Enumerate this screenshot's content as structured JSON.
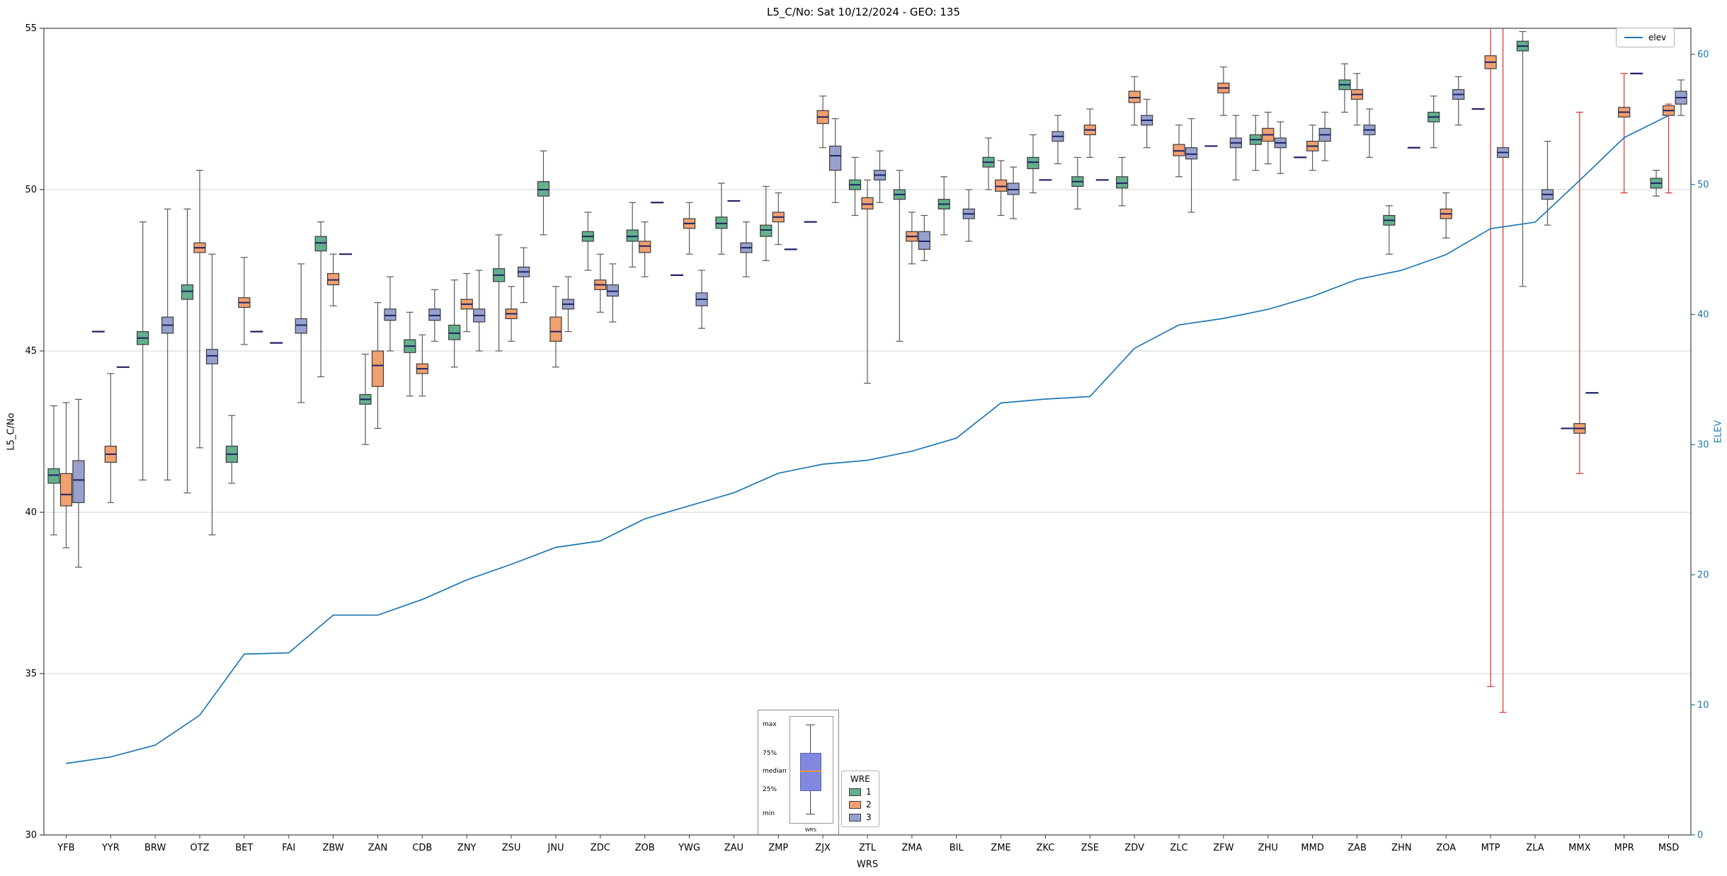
{
  "chart_data": {
    "type": "boxplot+line",
    "title": "L5_C/No: Sat 10/12/2024 - GEO: 135",
    "xlabel": "WRS",
    "ylabel_left": "L5_C/No",
    "ylabel_right": "ELEV",
    "ylim_left": [
      30,
      55
    ],
    "yticks_left": [
      30,
      35,
      40,
      45,
      50,
      55
    ],
    "ylim_right": [
      0,
      62
    ],
    "yticks_right": [
      0,
      10,
      20,
      30,
      40,
      50,
      60
    ],
    "grid": "horizontal-major",
    "legend": {
      "title": "WRE",
      "entries": [
        {
          "label": "1"
        },
        {
          "label": "2"
        },
        {
          "label": "3"
        }
      ]
    },
    "line_label": "elev",
    "series_labels": [
      "1",
      "2",
      "3"
    ],
    "colors": {
      "series": [
        "#63b08c",
        "#f1a06f",
        "#97a1cd"
      ],
      "box_edge": "#3b3b3b",
      "median": "#1d2266",
      "whisker": "#5a5a5a",
      "red": "#d93030",
      "line": "#1f77b4",
      "grid": "#d4d4d4",
      "spine": "#3f3f3f",
      "tick_right": "#1f77b4",
      "inset_box": "#8188df",
      "inset_box_edge": "#5c63b8",
      "inset_median": "#e8953c"
    },
    "box_format": "[min, q1, median, q3, max, red-whisker-flag?] ; single value = median-only dash",
    "points": [
      {
        "wrs": "YFB",
        "elev": 5.5,
        "s1": [
          39.3,
          40.9,
          41.15,
          41.35,
          43.3
        ],
        "s2": [
          38.9,
          40.2,
          40.55,
          41.2,
          43.4
        ],
        "s3": [
          38.3,
          40.3,
          41.0,
          41.6,
          43.5
        ]
      },
      {
        "wrs": "YYR",
        "elev": 6.0,
        "s1": [
          45.6
        ],
        "s2": [
          40.3,
          41.55,
          41.8,
          42.05,
          44.3
        ],
        "s3": [
          44.5
        ]
      },
      {
        "wrs": "BRW",
        "elev": 6.9,
        "s1": [
          41.0,
          45.2,
          45.4,
          45.6,
          49.0
        ],
        "s2": null,
        "s3": [
          41.0,
          45.55,
          45.8,
          46.05,
          49.4
        ]
      },
      {
        "wrs": "OTZ",
        "elev": 9.2,
        "s1": [
          40.6,
          46.6,
          46.85,
          47.05,
          49.4
        ],
        "s2": [
          42.0,
          48.05,
          48.2,
          48.35,
          50.6
        ],
        "s3": [
          39.3,
          44.6,
          44.85,
          45.05,
          48.0
        ]
      },
      {
        "wrs": "BET",
        "elev": 13.9,
        "s1": [
          40.9,
          41.55,
          41.8,
          42.05,
          43.0
        ],
        "s2": [
          45.2,
          46.35,
          46.5,
          46.65,
          47.9
        ],
        "s3": [
          45.6
        ]
      },
      {
        "wrs": "FAI",
        "elev": 14.0,
        "s1": [
          45.25
        ],
        "s2": null,
        "s3": [
          43.4,
          45.55,
          45.8,
          46.0,
          47.7
        ]
      },
      {
        "wrs": "ZBW",
        "elev": 16.9,
        "s1": [
          44.2,
          48.1,
          48.35,
          48.55,
          49.0
        ],
        "s2": [
          46.4,
          47.05,
          47.2,
          47.4,
          48.0
        ],
        "s3": [
          48.0
        ]
      },
      {
        "wrs": "ZAN",
        "elev": 16.9,
        "s1": [
          42.1,
          43.35,
          43.5,
          43.65,
          44.9
        ],
        "s2": [
          42.6,
          43.9,
          44.55,
          45.0,
          46.5
        ],
        "s3": [
          45.0,
          45.95,
          46.1,
          46.3,
          47.3
        ]
      },
      {
        "wrs": "CDB",
        "elev": 18.1,
        "s1": [
          43.6,
          44.95,
          45.15,
          45.35,
          46.2
        ],
        "s2": [
          43.6,
          44.3,
          44.45,
          44.6,
          45.5
        ],
        "s3": [
          45.3,
          45.95,
          46.1,
          46.3,
          46.9
        ]
      },
      {
        "wrs": "ZNY",
        "elev": 19.6,
        "s1": [
          44.5,
          45.35,
          45.55,
          45.8,
          47.2
        ],
        "s2": [
          45.6,
          46.3,
          46.45,
          46.6,
          47.4
        ],
        "s3": [
          45.0,
          45.9,
          46.1,
          46.3,
          47.5
        ]
      },
      {
        "wrs": "ZSU",
        "elev": 20.8,
        "s1": [
          45.0,
          47.15,
          47.35,
          47.55,
          48.6
        ],
        "s2": [
          45.3,
          46.0,
          46.15,
          46.3,
          47.0
        ],
        "s3": [
          46.5,
          47.3,
          47.45,
          47.6,
          48.2
        ]
      },
      {
        "wrs": "JNU",
        "elev": 22.1,
        "s1": [
          48.6,
          49.8,
          50.0,
          50.25,
          51.2
        ],
        "s2": [
          44.5,
          45.3,
          45.6,
          46.05,
          47.0
        ],
        "s3": [
          45.6,
          46.3,
          46.45,
          46.6,
          47.3
        ]
      },
      {
        "wrs": "ZDC",
        "elev": 22.6,
        "s1": [
          47.5,
          48.4,
          48.55,
          48.7,
          49.3
        ],
        "s2": [
          46.2,
          46.9,
          47.05,
          47.2,
          48.0
        ],
        "s3": [
          45.9,
          46.7,
          46.85,
          47.05,
          47.7
        ]
      },
      {
        "wrs": "ZOB",
        "elev": 24.3,
        "s1": [
          47.6,
          48.4,
          48.55,
          48.75,
          49.6
        ],
        "s2": [
          47.3,
          48.05,
          48.25,
          48.4,
          49.0
        ],
        "s3": [
          49.6
        ]
      },
      {
        "wrs": "YWG",
        "elev": 25.3,
        "s1": [
          47.35
        ],
        "s2": [
          48.0,
          48.8,
          48.95,
          49.1,
          49.6
        ],
        "s3": [
          45.7,
          46.4,
          46.6,
          46.8,
          47.5
        ]
      },
      {
        "wrs": "ZAU",
        "elev": 26.3,
        "s1": [
          48.0,
          48.8,
          48.95,
          49.15,
          50.2
        ],
        "s2": [
          49.65
        ],
        "s3": [
          47.3,
          48.05,
          48.2,
          48.35,
          49.0
        ]
      },
      {
        "wrs": "ZMP",
        "elev": 27.8,
        "s1": [
          47.8,
          48.55,
          48.75,
          48.9,
          50.1
        ],
        "s2": [
          48.3,
          49.0,
          49.15,
          49.3,
          49.9
        ],
        "s3": [
          48.15
        ]
      },
      {
        "wrs": "ZJX",
        "elev": 28.5,
        "s1": [
          49.0
        ],
        "s2": [
          51.3,
          52.05,
          52.25,
          52.45,
          52.9
        ],
        "s3": [
          49.6,
          50.6,
          51.05,
          51.35,
          52.2
        ]
      },
      {
        "wrs": "ZTL",
        "elev": 28.8,
        "s1": [
          49.2,
          50.0,
          50.15,
          50.3,
          51.0
        ],
        "s2": [
          44.0,
          49.4,
          49.55,
          49.75,
          50.3
        ],
        "s3": [
          49.6,
          50.3,
          50.45,
          50.6,
          51.2
        ]
      },
      {
        "wrs": "ZMA",
        "elev": 29.5,
        "s1": [
          45.3,
          49.7,
          49.85,
          50.0,
          50.6
        ],
        "s2": [
          47.7,
          48.4,
          48.55,
          48.7,
          49.3
        ],
        "s3": [
          47.8,
          48.15,
          48.4,
          48.7,
          49.2
        ]
      },
      {
        "wrs": "BIL",
        "elev": 30.5,
        "s1": [
          48.6,
          49.4,
          49.55,
          49.7,
          50.4
        ],
        "s2": null,
        "s3": [
          48.4,
          49.1,
          49.25,
          49.4,
          50.0
        ]
      },
      {
        "wrs": "ZME",
        "elev": 33.2,
        "s1": [
          50.0,
          50.7,
          50.85,
          51.0,
          51.6
        ],
        "s2": [
          49.2,
          49.95,
          50.1,
          50.3,
          50.9
        ],
        "s3": [
          49.1,
          49.85,
          50.0,
          50.2,
          50.7
        ]
      },
      {
        "wrs": "ZKC",
        "elev": 33.5,
        "s1": [
          49.9,
          50.65,
          50.85,
          51.0,
          51.7
        ],
        "s2": [
          50.3
        ],
        "s3": [
          50.8,
          51.5,
          51.65,
          51.8,
          52.3
        ]
      },
      {
        "wrs": "ZSE",
        "elev": 33.7,
        "s1": [
          49.4,
          50.1,
          50.25,
          50.4,
          51.0
        ],
        "s2": [
          51.0,
          51.7,
          51.85,
          52.0,
          52.5
        ],
        "s3": [
          50.3
        ]
      },
      {
        "wrs": "ZDV",
        "elev": 37.4,
        "s1": [
          49.5,
          50.05,
          50.2,
          50.4,
          51.0
        ],
        "s2": [
          52.0,
          52.7,
          52.85,
          53.05,
          53.5
        ],
        "s3": [
          51.3,
          52.0,
          52.15,
          52.3,
          52.8
        ]
      },
      {
        "wrs": "ZLC",
        "elev": 39.2,
        "s1": null,
        "s2": [
          50.4,
          51.05,
          51.2,
          51.4,
          52.0
        ],
        "s3": [
          49.3,
          50.95,
          51.1,
          51.3,
          52.2
        ]
      },
      {
        "wrs": "ZFW",
        "elev": 39.7,
        "s1": [
          51.35
        ],
        "s2": [
          52.3,
          53.0,
          53.15,
          53.3,
          53.8
        ],
        "s3": [
          50.3,
          51.3,
          51.45,
          51.6,
          52.3
        ]
      },
      {
        "wrs": "ZHU",
        "elev": 40.4,
        "s1": [
          50.6,
          51.4,
          51.55,
          51.7,
          52.3
        ],
        "s2": [
          50.8,
          51.5,
          51.7,
          51.9,
          52.4
        ],
        "s3": [
          50.5,
          51.3,
          51.45,
          51.6,
          52.1
        ]
      },
      {
        "wrs": "MMD",
        "elev": 41.4,
        "s1": [
          51.0
        ],
        "s2": [
          50.6,
          51.2,
          51.35,
          51.5,
          52.0
        ],
        "s3": [
          50.9,
          51.5,
          51.7,
          51.9,
          52.4
        ]
      },
      {
        "wrs": "ZAB",
        "elev": 42.7,
        "s1": [
          52.4,
          53.1,
          53.25,
          53.4,
          53.9
        ],
        "s2": [
          52.0,
          52.8,
          52.95,
          53.1,
          53.6
        ],
        "s3": [
          51.0,
          51.7,
          51.85,
          52.0,
          52.5
        ]
      },
      {
        "wrs": "ZHN",
        "elev": 43.4,
        "s1": [
          48.0,
          48.9,
          49.05,
          49.2,
          49.5
        ],
        "s2": null,
        "s3": [
          51.3
        ]
      },
      {
        "wrs": "ZOA",
        "elev": 44.6,
        "s1": [
          51.3,
          52.1,
          52.25,
          52.4,
          52.9
        ],
        "s2": [
          48.5,
          49.1,
          49.25,
          49.4,
          49.9
        ],
        "s3": [
          52.0,
          52.8,
          52.95,
          53.1,
          53.5
        ]
      },
      {
        "wrs": "MTP",
        "elev": 46.6,
        "s1": [
          52.5
        ],
        "s2": [
          34.6,
          53.75,
          53.95,
          54.15,
          55.2,
          1
        ],
        "s3": [
          33.8,
          51.0,
          51.15,
          51.3,
          55.4,
          1
        ]
      },
      {
        "wrs": "ZLA",
        "elev": 47.1,
        "s1": [
          47.0,
          54.3,
          54.45,
          54.6,
          54.9
        ],
        "s2": null,
        "s3": [
          48.9,
          49.7,
          49.85,
          50.0,
          51.5
        ]
      },
      {
        "wrs": "MMX",
        "elev": 50.3,
        "s1": [
          42.6
        ],
        "s2": [
          41.2,
          42.45,
          42.6,
          42.75,
          52.4,
          1
        ],
        "s3": [
          43.7
        ]
      },
      {
        "wrs": "MPR",
        "elev": 53.6,
        "s1": null,
        "s2": [
          49.9,
          52.25,
          52.4,
          52.55,
          53.6,
          1
        ],
        "s3": [
          53.6
        ]
      },
      {
        "wrs": "MSD",
        "elev": 55.3,
        "s1": [
          49.8,
          50.05,
          50.2,
          50.35,
          50.6
        ],
        "s2": [
          49.9,
          52.3,
          52.45,
          52.6,
          52.65,
          1
        ],
        "s3": [
          52.3,
          52.65,
          52.85,
          53.05,
          53.4
        ]
      }
    ]
  },
  "inset": {
    "max": "max",
    "p75": "75%",
    "median": "median",
    "p25": "25%",
    "min": "min",
    "xlabel": "WRS"
  }
}
